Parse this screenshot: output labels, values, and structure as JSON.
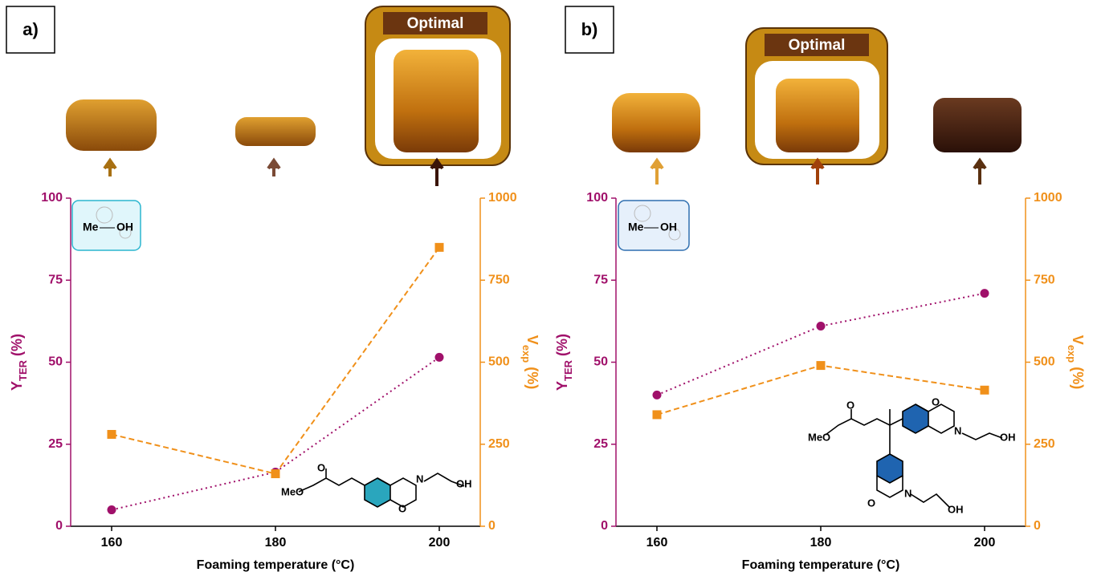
{
  "chart_data": [
    {
      "type": "line",
      "panel_label": "a)",
      "badge": "Optimal",
      "xlabel": "Foaming temperature (°C)",
      "ylabel": {
        "main": "Y",
        "sub": "TER",
        "unit": "(%)"
      },
      "y2label": {
        "main": "V",
        "sub": "exp",
        "unit": "(%)"
      },
      "icon_labels": [
        "Me",
        "OH"
      ],
      "molecule_labels": [
        "O",
        "MeO",
        "N",
        "OH",
        "O"
      ],
      "x": [
        160,
        180,
        200
      ],
      "xlim": [
        155,
        205
      ],
      "xticks": [
        160,
        180,
        200
      ],
      "ylim": [
        0,
        100
      ],
      "yticks": [
        0,
        25,
        50,
        75,
        100
      ],
      "y2lim": [
        0,
        1000
      ],
      "y2ticks": [
        0,
        250,
        500,
        750,
        1000
      ],
      "series": [
        {
          "color": "#a0106a",
          "marker": "circle",
          "linestyle": "dotted",
          "values": [
            5,
            16.5,
            51.5
          ]
        },
        {
          "color": "#f0901a",
          "marker": "square",
          "linestyle": "dashed",
          "axis": "y2",
          "values": [
            280,
            160,
            850
          ]
        }
      ]
    },
    {
      "type": "line",
      "panel_label": "b)",
      "badge": "Optimal",
      "xlabel": "Foaming temperature (°C)",
      "ylabel": {
        "main": "Y",
        "sub": "TER",
        "unit": "(%)"
      },
      "y2label": {
        "main": "V",
        "sub": "exp",
        "unit": "(%)"
      },
      "icon_labels": [
        "Me",
        "OH"
      ],
      "molecule_labels": [
        "O",
        "MeO",
        "O",
        "N",
        "OH",
        "O",
        "N",
        "OH"
      ],
      "x": [
        160,
        180,
        200
      ],
      "xlim": [
        155,
        205
      ],
      "xticks": [
        160,
        180,
        200
      ],
      "ylim": [
        0,
        100
      ],
      "yticks": [
        0,
        25,
        50,
        75,
        100
      ],
      "y2lim": [
        0,
        1000
      ],
      "y2ticks": [
        0,
        250,
        500,
        750,
        1000
      ],
      "series": [
        {
          "color": "#a0106a",
          "marker": "circle",
          "linestyle": "dotted",
          "values": [
            40,
            61,
            71
          ]
        },
        {
          "color": "#f0901a",
          "marker": "square",
          "linestyle": "dashed",
          "axis": "y2",
          "values": [
            340,
            490,
            415
          ]
        }
      ]
    }
  ]
}
